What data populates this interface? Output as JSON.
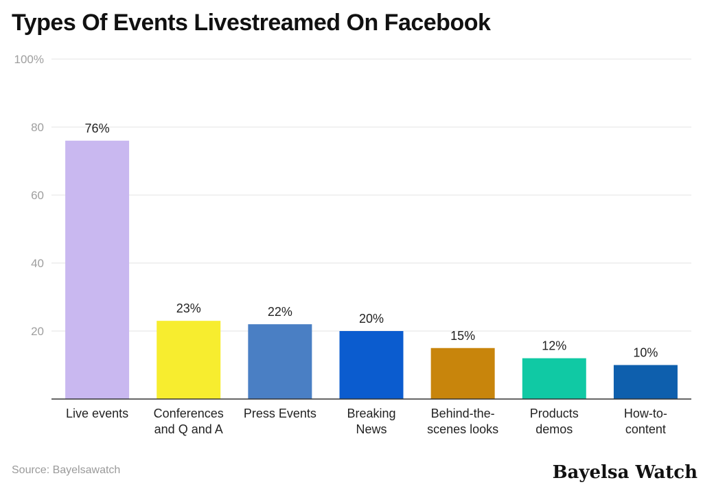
{
  "title": "Types Of Events Livestreamed On Facebook",
  "source": "Source: Bayelsawatch",
  "brand": "Bayelsa Watch",
  "chart_data": {
    "type": "bar",
    "title": "Types Of Events Livestreamed On Facebook",
    "xlabel": "",
    "ylabel": "",
    "ylim": [
      0,
      100
    ],
    "yticks": [
      {
        "value": 20,
        "label": "20"
      },
      {
        "value": 40,
        "label": "40"
      },
      {
        "value": 60,
        "label": "60"
      },
      {
        "value": 80,
        "label": "80"
      },
      {
        "value": 100,
        "label": "100%"
      }
    ],
    "grid": true,
    "categories": [
      [
        "Live events"
      ],
      [
        "Conferences",
        "and Q and A"
      ],
      [
        "Press Events"
      ],
      [
        "Breaking",
        "News"
      ],
      [
        "Behind-the-",
        "scenes looks"
      ],
      [
        "Products",
        "demos"
      ],
      [
        "How-to-",
        "content"
      ]
    ],
    "values": [
      76,
      23,
      22,
      20,
      15,
      12,
      10
    ],
    "data_labels": [
      "76%",
      "23%",
      "22%",
      "20%",
      "15%",
      "12%",
      "10%"
    ],
    "colors": [
      "#c9b8f0",
      "#f7ed2f",
      "#4a7fc4",
      "#0b5ccf",
      "#c8850c",
      "#10c9a4",
      "#0e5fad"
    ]
  }
}
